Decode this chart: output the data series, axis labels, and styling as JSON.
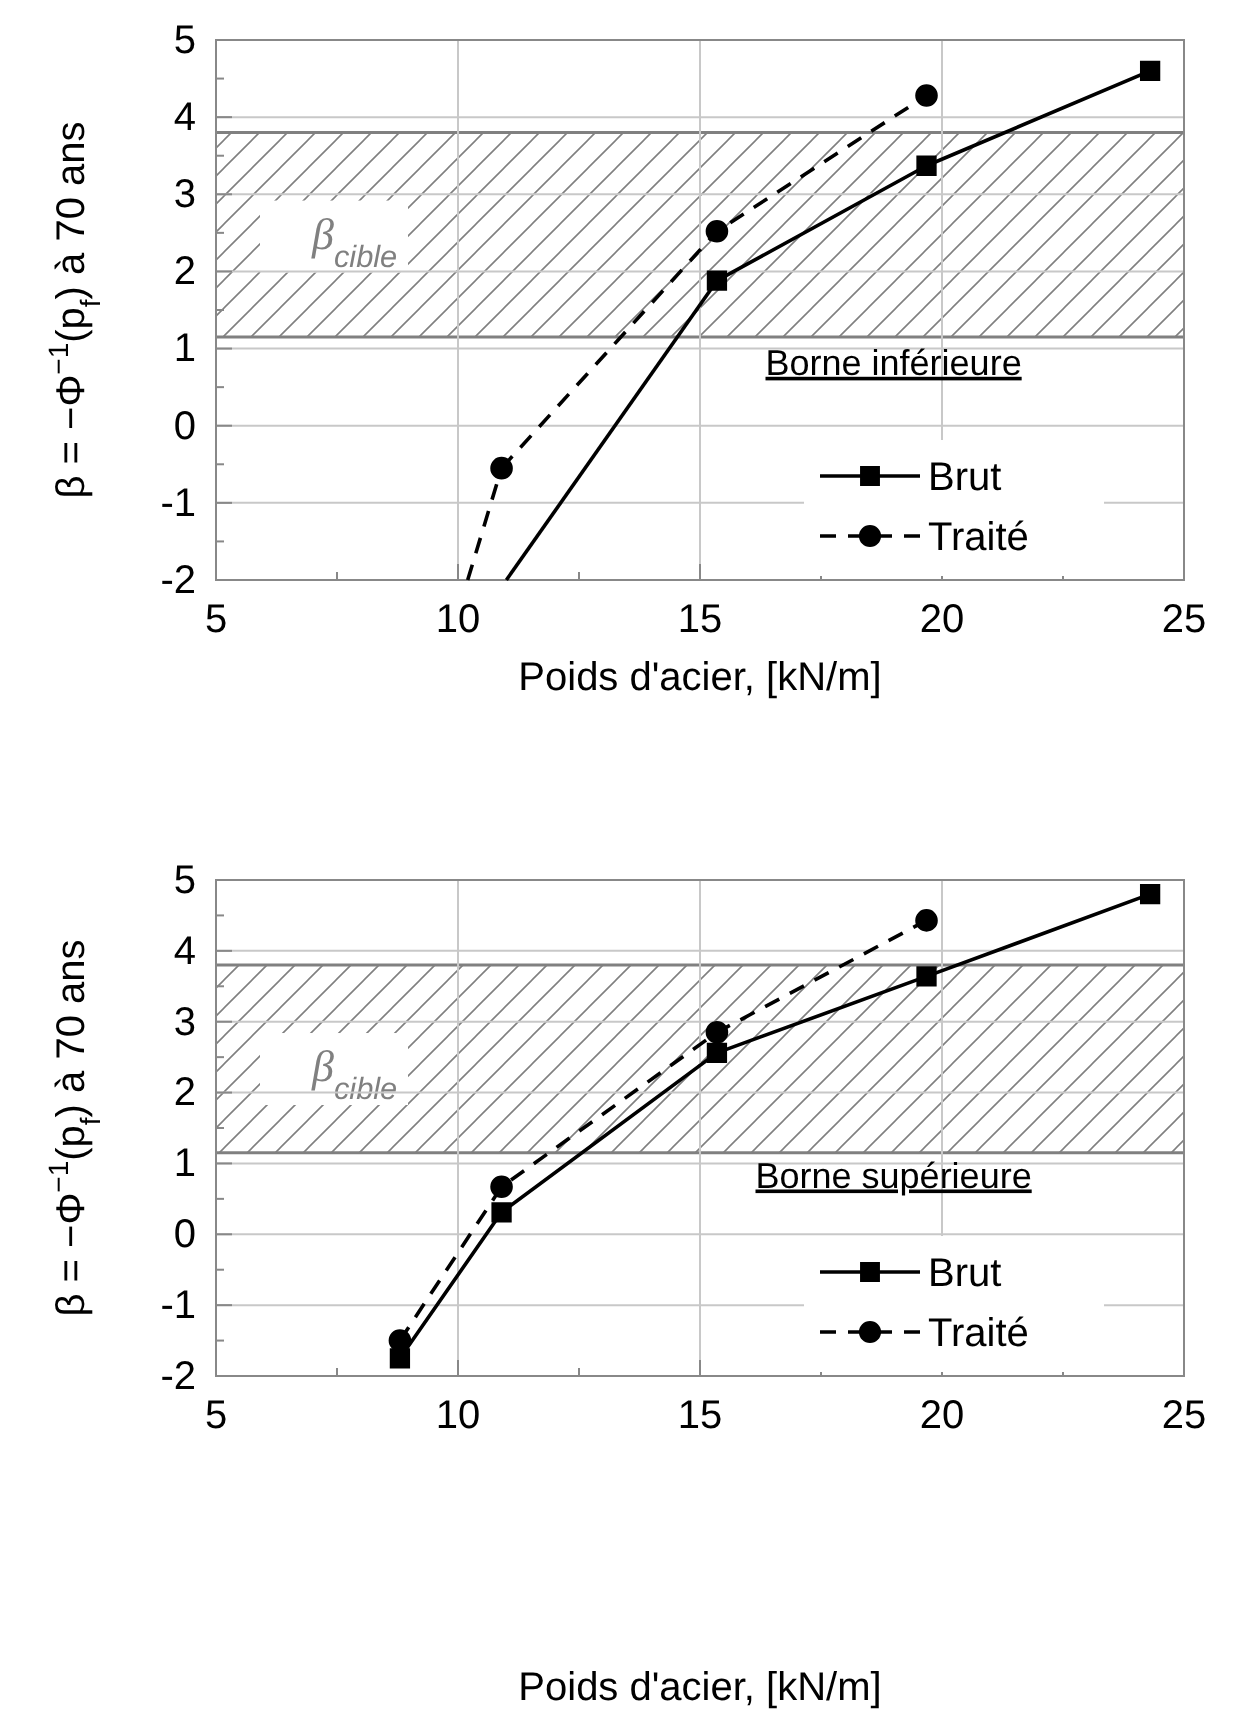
{
  "chart_data": [
    {
      "type": "line",
      "xlabel": "Poids d'acier, [kN/m]",
      "ylabel": "β = −Φ$^{−1}$(p$_{f}$) à 70 ans",
      "xlim": [
        5,
        25
      ],
      "ylim": [
        -2,
        5
      ],
      "xticks": [
        5,
        {
          "value": 7.5,
          "label": null
        },
        10,
        {
          "value": 12.5,
          "label": null
        },
        15,
        {
          "value": 17.5,
          "label": null
        },
        20,
        {
          "value": 22.5,
          "label": null
        },
        25
      ],
      "yticks": [
        -2,
        {
          "value": -1.5,
          "label": null
        },
        -1,
        {
          "value": -0.5,
          "label": null
        },
        0,
        {
          "value": 0.5,
          "label": null
        },
        1,
        {
          "value": 1.5,
          "label": null
        },
        2,
        {
          "value": 2.5,
          "label": null
        },
        3,
        {
          "value": 3.5,
          "label": null
        },
        4,
        {
          "value": 4.5,
          "label": null
        },
        5
      ],
      "grid": true,
      "legend": "bottom right",
      "bands": [
        {
          "axis": "y",
          "from": 1.15,
          "to": 3.8,
          "label": "β$_{cible}$",
          "color": "#808080"
        }
      ],
      "ref_lines": [
        {
          "axis": "y",
          "value": 1.15,
          "color": "#808080"
        },
        {
          "axis": "y",
          "value": 3.8,
          "color": "#808080"
        }
      ],
      "annotations": [
        "Borne inférieure"
      ],
      "series": [
        {
          "name": "Brut",
          "color": "#000000",
          "marker": "square",
          "line_style": "solid",
          "x": [
            15.35,
            19.68,
            24.3
          ],
          "values": [
            1.88,
            3.37,
            4.6
          ]
        },
        {
          "name": "Traité",
          "color": "#000000",
          "marker": "circle",
          "line_style": "dashed",
          "x": [
            10.9,
            15.35,
            19.68
          ],
          "values": [
            -0.55,
            2.52,
            4.28
          ]
        },
        {
          "color": "#000000",
          "marker": "none",
          "line_style": "solid",
          "x": [
            11.0,
            15.35
          ],
          "values": [
            -2,
            1.88
          ]
        },
        {
          "color": "#000000",
          "marker": "none",
          "line_style": "dashed",
          "x": [
            10.2,
            10.9
          ],
          "values": [
            -2,
            -0.55
          ]
        }
      ]
    },
    {
      "type": "line",
      "xlabel": "Poids d'acier, [kN/m]",
      "ylabel": "β = −Φ$^{−1}$(p$_{f}$) à 70 ans",
      "xlim": [
        5,
        25
      ],
      "ylim": [
        -2,
        5
      ],
      "xticks": [
        5,
        {
          "value": 7.5,
          "label": null
        },
        10,
        {
          "value": 12.5,
          "label": null
        },
        15,
        {
          "value": 17.5,
          "label": null
        },
        20,
        {
          "value": 22.5,
          "label": null
        },
        25
      ],
      "yticks": [
        -2,
        {
          "value": -1.5,
          "label": null
        },
        -1,
        {
          "value": -0.5,
          "label": null
        },
        0,
        {
          "value": 0.5,
          "label": null
        },
        1,
        {
          "value": 1.5,
          "label": null
        },
        2,
        {
          "value": 2.5,
          "label": null
        },
        3,
        {
          "value": 3.5,
          "label": null
        },
        4,
        {
          "value": 4.5,
          "label": null
        },
        5
      ],
      "grid": true,
      "legend": "bottom right",
      "bands": [
        {
          "axis": "y",
          "from": 1.15,
          "to": 3.8,
          "label": "β$_{cible}$",
          "color": "#808080"
        }
      ],
      "ref_lines": [
        {
          "axis": "y",
          "value": 1.15,
          "color": "#808080"
        },
        {
          "axis": "y",
          "value": 3.8,
          "color": "#808080"
        }
      ],
      "annotations": [
        "Borne supérieure"
      ],
      "series": [
        {
          "name": "Brut",
          "color": "#000000",
          "marker": "square",
          "line_style": "solid",
          "x": [
            8.8,
            10.9,
            15.35,
            19.68,
            24.3
          ],
          "values": [
            -1.75,
            0.31,
            2.56,
            3.64,
            4.8
          ]
        },
        {
          "name": "Traité",
          "color": "#000000",
          "marker": "circle",
          "line_style": "dashed",
          "x": [
            8.8,
            10.9,
            15.35,
            19.68
          ],
          "values": [
            -1.5,
            0.67,
            2.85,
            4.43
          ]
        }
      ]
    }
  ]
}
